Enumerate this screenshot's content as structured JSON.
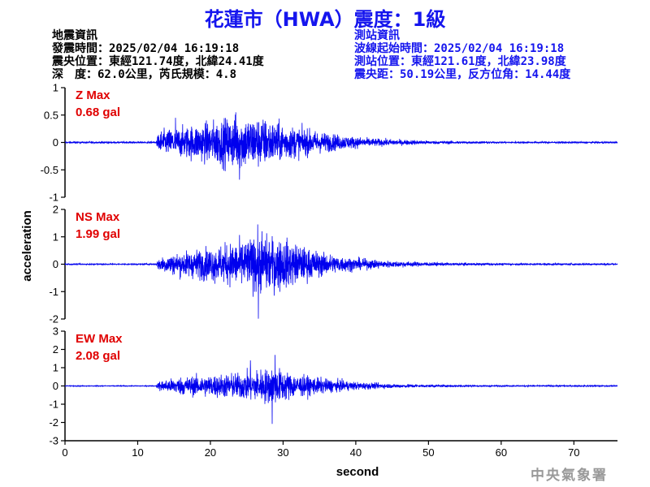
{
  "header": {
    "title": "花蓮市（HWA）震度：1級",
    "quake_info": {
      "heading": "地震資訊",
      "origin_time": "發震時間：2025/02/04 16:19:18",
      "epicenter": "震央位置：東經121.74度，北緯24.41度",
      "depth_magnitude": "深　度：62.0公里，芮氏規模：4.8"
    },
    "station_info": {
      "heading": "測站資訊",
      "wave_start": "波線起始時間：2025/02/04 16:19:18",
      "location": "測站位置：東經121.61度，北緯23.98度",
      "distance_azimuth": "震央距：50.19公里，反方位角：14.44度"
    }
  },
  "watermark": "中央氣象署",
  "colors": {
    "trace": "#0000ee",
    "title": "#1515ee",
    "max_label": "#e00000"
  },
  "chart_data": [
    {
      "type": "line",
      "component": "Z",
      "max_label": "Z Max",
      "max_value": "0.68 gal",
      "ylim": [
        -1,
        1
      ],
      "yticks": [
        -1,
        -0.5,
        0,
        0.5,
        1
      ],
      "ytick_labels": [
        "-1",
        "-0.5",
        "0",
        "0.5",
        "1"
      ],
      "peak_abs": 0.68,
      "envelope": {
        "x": [
          0,
          12.5,
          13,
          16,
          20,
          24,
          27,
          30,
          34,
          38,
          42,
          46,
          50,
          55,
          60,
          76
        ],
        "y": [
          0.015,
          0.015,
          0.2,
          0.25,
          0.35,
          0.45,
          0.42,
          0.3,
          0.2,
          0.12,
          0.07,
          0.045,
          0.03,
          0.02,
          0.015,
          0.015
        ]
      },
      "spikes": [
        {
          "x": 24.0,
          "y": -0.68
        },
        {
          "x": 23.5,
          "y": 0.55
        },
        {
          "x": 15.2,
          "y": 0.45
        }
      ]
    },
    {
      "type": "line",
      "component": "NS",
      "max_label": "NS Max",
      "max_value": "1.99 gal",
      "ylim": [
        -2,
        2
      ],
      "yticks": [
        -2,
        -1,
        0,
        1,
        2
      ],
      "ytick_labels": [
        "-2",
        "-1",
        "0",
        "1",
        "2"
      ],
      "peak_abs": 1.99,
      "envelope": {
        "x": [
          0,
          12.5,
          13,
          16,
          20,
          24,
          27,
          30,
          33,
          36,
          40,
          44,
          48,
          52,
          60,
          76
        ],
        "y": [
          0.02,
          0.02,
          0.25,
          0.4,
          0.55,
          0.75,
          0.95,
          0.85,
          0.55,
          0.35,
          0.2,
          0.12,
          0.08,
          0.05,
          0.03,
          0.03
        ]
      },
      "spikes": [
        {
          "x": 26.6,
          "y": -1.99
        },
        {
          "x": 26.5,
          "y": 1.45
        },
        {
          "x": 27.1,
          "y": 1.2
        }
      ]
    },
    {
      "type": "line",
      "component": "EW",
      "max_label": "EW Max",
      "max_value": "2.08 gal",
      "ylim": [
        -3,
        3
      ],
      "yticks": [
        -3,
        -2,
        -1,
        0,
        1,
        2,
        3
      ],
      "ytick_labels": [
        "-3",
        "-2",
        "-1",
        "0",
        "1",
        "2",
        "3"
      ],
      "peak_abs": 2.08,
      "envelope": {
        "x": [
          0,
          12.5,
          13,
          16,
          20,
          24,
          27,
          29,
          32,
          36,
          40,
          44,
          48,
          52,
          60,
          76
        ],
        "y": [
          0.02,
          0.02,
          0.25,
          0.45,
          0.55,
          0.65,
          0.85,
          0.9,
          0.55,
          0.35,
          0.2,
          0.12,
          0.08,
          0.05,
          0.03,
          0.03
        ]
      },
      "spikes": [
        {
          "x": 28.5,
          "y": -2.08
        },
        {
          "x": 28.9,
          "y": 1.7
        },
        {
          "x": 25.5,
          "y": 1.4
        }
      ]
    }
  ],
  "x_axis": {
    "label": "second",
    "xlim": [
      0,
      76
    ],
    "ticks": [
      0,
      10,
      20,
      30,
      40,
      50,
      60,
      70
    ],
    "tick_labels": [
      "0",
      "10",
      "20",
      "30",
      "40",
      "50",
      "60",
      "70"
    ]
  },
  "y_axis_label": "acceleration"
}
